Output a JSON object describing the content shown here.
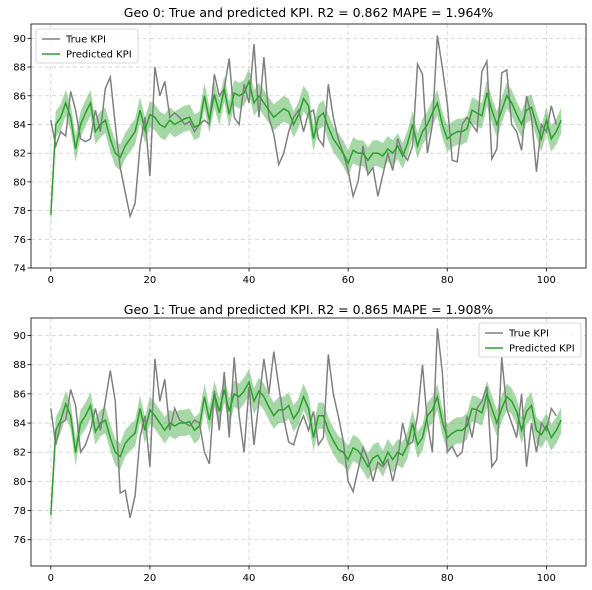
{
  "chart_data": [
    {
      "type": "line",
      "title": "Geo 0: True and predicted KPI. R2 = 0.862 MAPE = 1.964%",
      "xlabel": "",
      "ylabel": "",
      "xlim": [
        -4,
        108
      ],
      "ylim": [
        74,
        91
      ],
      "xticks": [
        0,
        20,
        40,
        60,
        80,
        100
      ],
      "yticks": [
        74,
        76,
        78,
        80,
        82,
        84,
        86,
        88,
        90
      ],
      "grid": true,
      "legend_position": "upper-left",
      "band_halfwidth": 0.9,
      "series": [
        {
          "name": "True KPI",
          "color": "#808080",
          "values": [
            84.3,
            82.5,
            83.5,
            83.2,
            86.3,
            85.0,
            83.0,
            82.8,
            83.0,
            85.0,
            83.5,
            86.5,
            87.3,
            84.0,
            81.0,
            79.3,
            77.6,
            78.5,
            82.5,
            84.5,
            80.4,
            88.0,
            86.0,
            87.0,
            84.5,
            84.8,
            84.5,
            84.0,
            84.2,
            83.5,
            84.0,
            84.3,
            84.0,
            87.5,
            86.0,
            86.5,
            88.6,
            84.5,
            84.0,
            86.8,
            85.5,
            89.6,
            84.5,
            88.7,
            84.5,
            83.3,
            81.2,
            82.0,
            83.5,
            84.5,
            85.0,
            83.5,
            84.8,
            85.0,
            83.0,
            82.5,
            86.8,
            84.5,
            83.0,
            82.0,
            80.8,
            79.0,
            80.0,
            82.5,
            80.5,
            81.0,
            79.0,
            80.5,
            82.0,
            80.8,
            83.0,
            82.0,
            81.5,
            82.5,
            88.2,
            87.5,
            82.0,
            84.0,
            90.2,
            88.0,
            85.5,
            81.5,
            81.4,
            84.0,
            84.5,
            84.0,
            83.5,
            87.7,
            88.4,
            81.6,
            82.3,
            87.6,
            87.8,
            84.0,
            83.5,
            82.2,
            86.0,
            84.5,
            80.7,
            84.0,
            83.5,
            85.3,
            84.0
          ]
        },
        {
          "name": "Predicted KPI",
          "color": "#2ca02c",
          "values": [
            77.7,
            84.0,
            84.5,
            85.5,
            84.5,
            82.3,
            84.0,
            84.8,
            85.5,
            83.5,
            84.0,
            84.3,
            83.0,
            82.0,
            81.7,
            82.5,
            83.0,
            83.5,
            85.0,
            83.6,
            84.7,
            84.5,
            84.0,
            83.8,
            84.3,
            84.0,
            84.2,
            84.4,
            84.5,
            83.8,
            84.0,
            86.0,
            84.3,
            86.1,
            84.8,
            86.5,
            84.7,
            86.2,
            86.0,
            86.2,
            87.0,
            85.5,
            86.0,
            85.5,
            85.0,
            84.5,
            84.8,
            85.1,
            84.9,
            84.0,
            84.7,
            85.8,
            85.3,
            83.0,
            84.5,
            84.8,
            83.8,
            83.0,
            82.5,
            82.0,
            81.3,
            82.2,
            82.0,
            82.0,
            81.5,
            82.0,
            82.0,
            81.8,
            82.3,
            82.0,
            82.5,
            81.8,
            82.7,
            84.0,
            82.5,
            83.5,
            84.0,
            84.8,
            85.5,
            84.0,
            83.0,
            83.3,
            83.5,
            83.5,
            83.7,
            85.0,
            84.8,
            84.6,
            86.2,
            85.0,
            84.0,
            85.0,
            86.0,
            85.5,
            84.7,
            84.0,
            85.0,
            85.2,
            84.0,
            83.0,
            84.3,
            83.0,
            83.5,
            84.3
          ]
        }
      ]
    },
    {
      "type": "line",
      "title": "Geo 1: True and predicted KPI. R2 = 0.865 MAPE = 1.908%",
      "xlabel": "",
      "ylabel": "",
      "xlim": [
        -4,
        108
      ],
      "ylim": [
        74.2,
        91.2
      ],
      "xticks": [
        0,
        20,
        40,
        60,
        80,
        100
      ],
      "yticks": [
        76,
        78,
        80,
        82,
        84,
        86,
        88,
        90
      ],
      "grid": true,
      "legend_position": "upper-right",
      "band_halfwidth": 0.9,
      "series": [
        {
          "name": "True KPI",
          "color": "#808080",
          "values": [
            85.0,
            82.5,
            84.0,
            84.2,
            86.3,
            85.2,
            82.0,
            82.5,
            83.5,
            85.0,
            83.5,
            85.5,
            87.6,
            85.5,
            79.2,
            79.4,
            77.5,
            79.0,
            83.0,
            84.5,
            81.0,
            88.4,
            85.5,
            87.0,
            83.5,
            85.0,
            84.2,
            84.0,
            83.8,
            84.2,
            84.0,
            82.0,
            81.2,
            86.2,
            83.5,
            87.5,
            83.0,
            88.5,
            84.5,
            82.0,
            86.5,
            82.5,
            85.5,
            88.4,
            86.0,
            88.9,
            86.5,
            84.3,
            82.7,
            82.5,
            83.7,
            84.5,
            83.5,
            84.8,
            82.5,
            83.0,
            88.7,
            86.0,
            84.5,
            82.8,
            80.0,
            79.3,
            80.8,
            82.3,
            81.5,
            80.0,
            81.3,
            81.0,
            81.5,
            80.0,
            81.5,
            84.0,
            82.5,
            82.7,
            84.5,
            88.0,
            84.0,
            82.0,
            90.5,
            87.5,
            82.0,
            82.4,
            81.7,
            82.0,
            84.5,
            83.0,
            85.0,
            85.5,
            86.5,
            81.0,
            81.5,
            88.5,
            85.0,
            84.0,
            83.0,
            86.0,
            81.0,
            84.0,
            82.0,
            84.0,
            83.5,
            85.0,
            84.5
          ]
        },
        {
          "name": "Predicted KPI",
          "color": "#2ca02c",
          "values": [
            77.7,
            83.5,
            84.2,
            85.3,
            84.5,
            82.0,
            84.0,
            84.5,
            85.2,
            83.4,
            84.0,
            84.2,
            83.0,
            82.0,
            81.7,
            82.6,
            83.0,
            83.3,
            85.0,
            83.5,
            84.9,
            84.5,
            84.0,
            83.5,
            84.0,
            83.8,
            84.0,
            84.0,
            84.1,
            83.5,
            83.8,
            85.8,
            84.2,
            86.0,
            84.8,
            86.3,
            84.8,
            86.0,
            85.8,
            86.2,
            86.8,
            85.5,
            86.2,
            85.8,
            85.1,
            84.5,
            84.9,
            84.9,
            85.2,
            84.3,
            84.8,
            85.8,
            85.0,
            83.0,
            84.5,
            84.5,
            83.5,
            82.8,
            82.2,
            82.0,
            81.5,
            82.3,
            82.1,
            81.6,
            81.0,
            81.6,
            81.8,
            81.2,
            82.0,
            81.5,
            82.0,
            81.8,
            82.5,
            84.0,
            82.5,
            83.0,
            84.5,
            84.9,
            85.8,
            84.1,
            83.0,
            83.3,
            83.5,
            83.5,
            83.8,
            85.0,
            84.9,
            84.7,
            86.0,
            85.0,
            84.0,
            85.0,
            85.8,
            85.5,
            84.8,
            83.5,
            84.8,
            85.2,
            83.5,
            83.2,
            83.8,
            83.0,
            83.5,
            84.2
          ]
        }
      ]
    }
  ]
}
